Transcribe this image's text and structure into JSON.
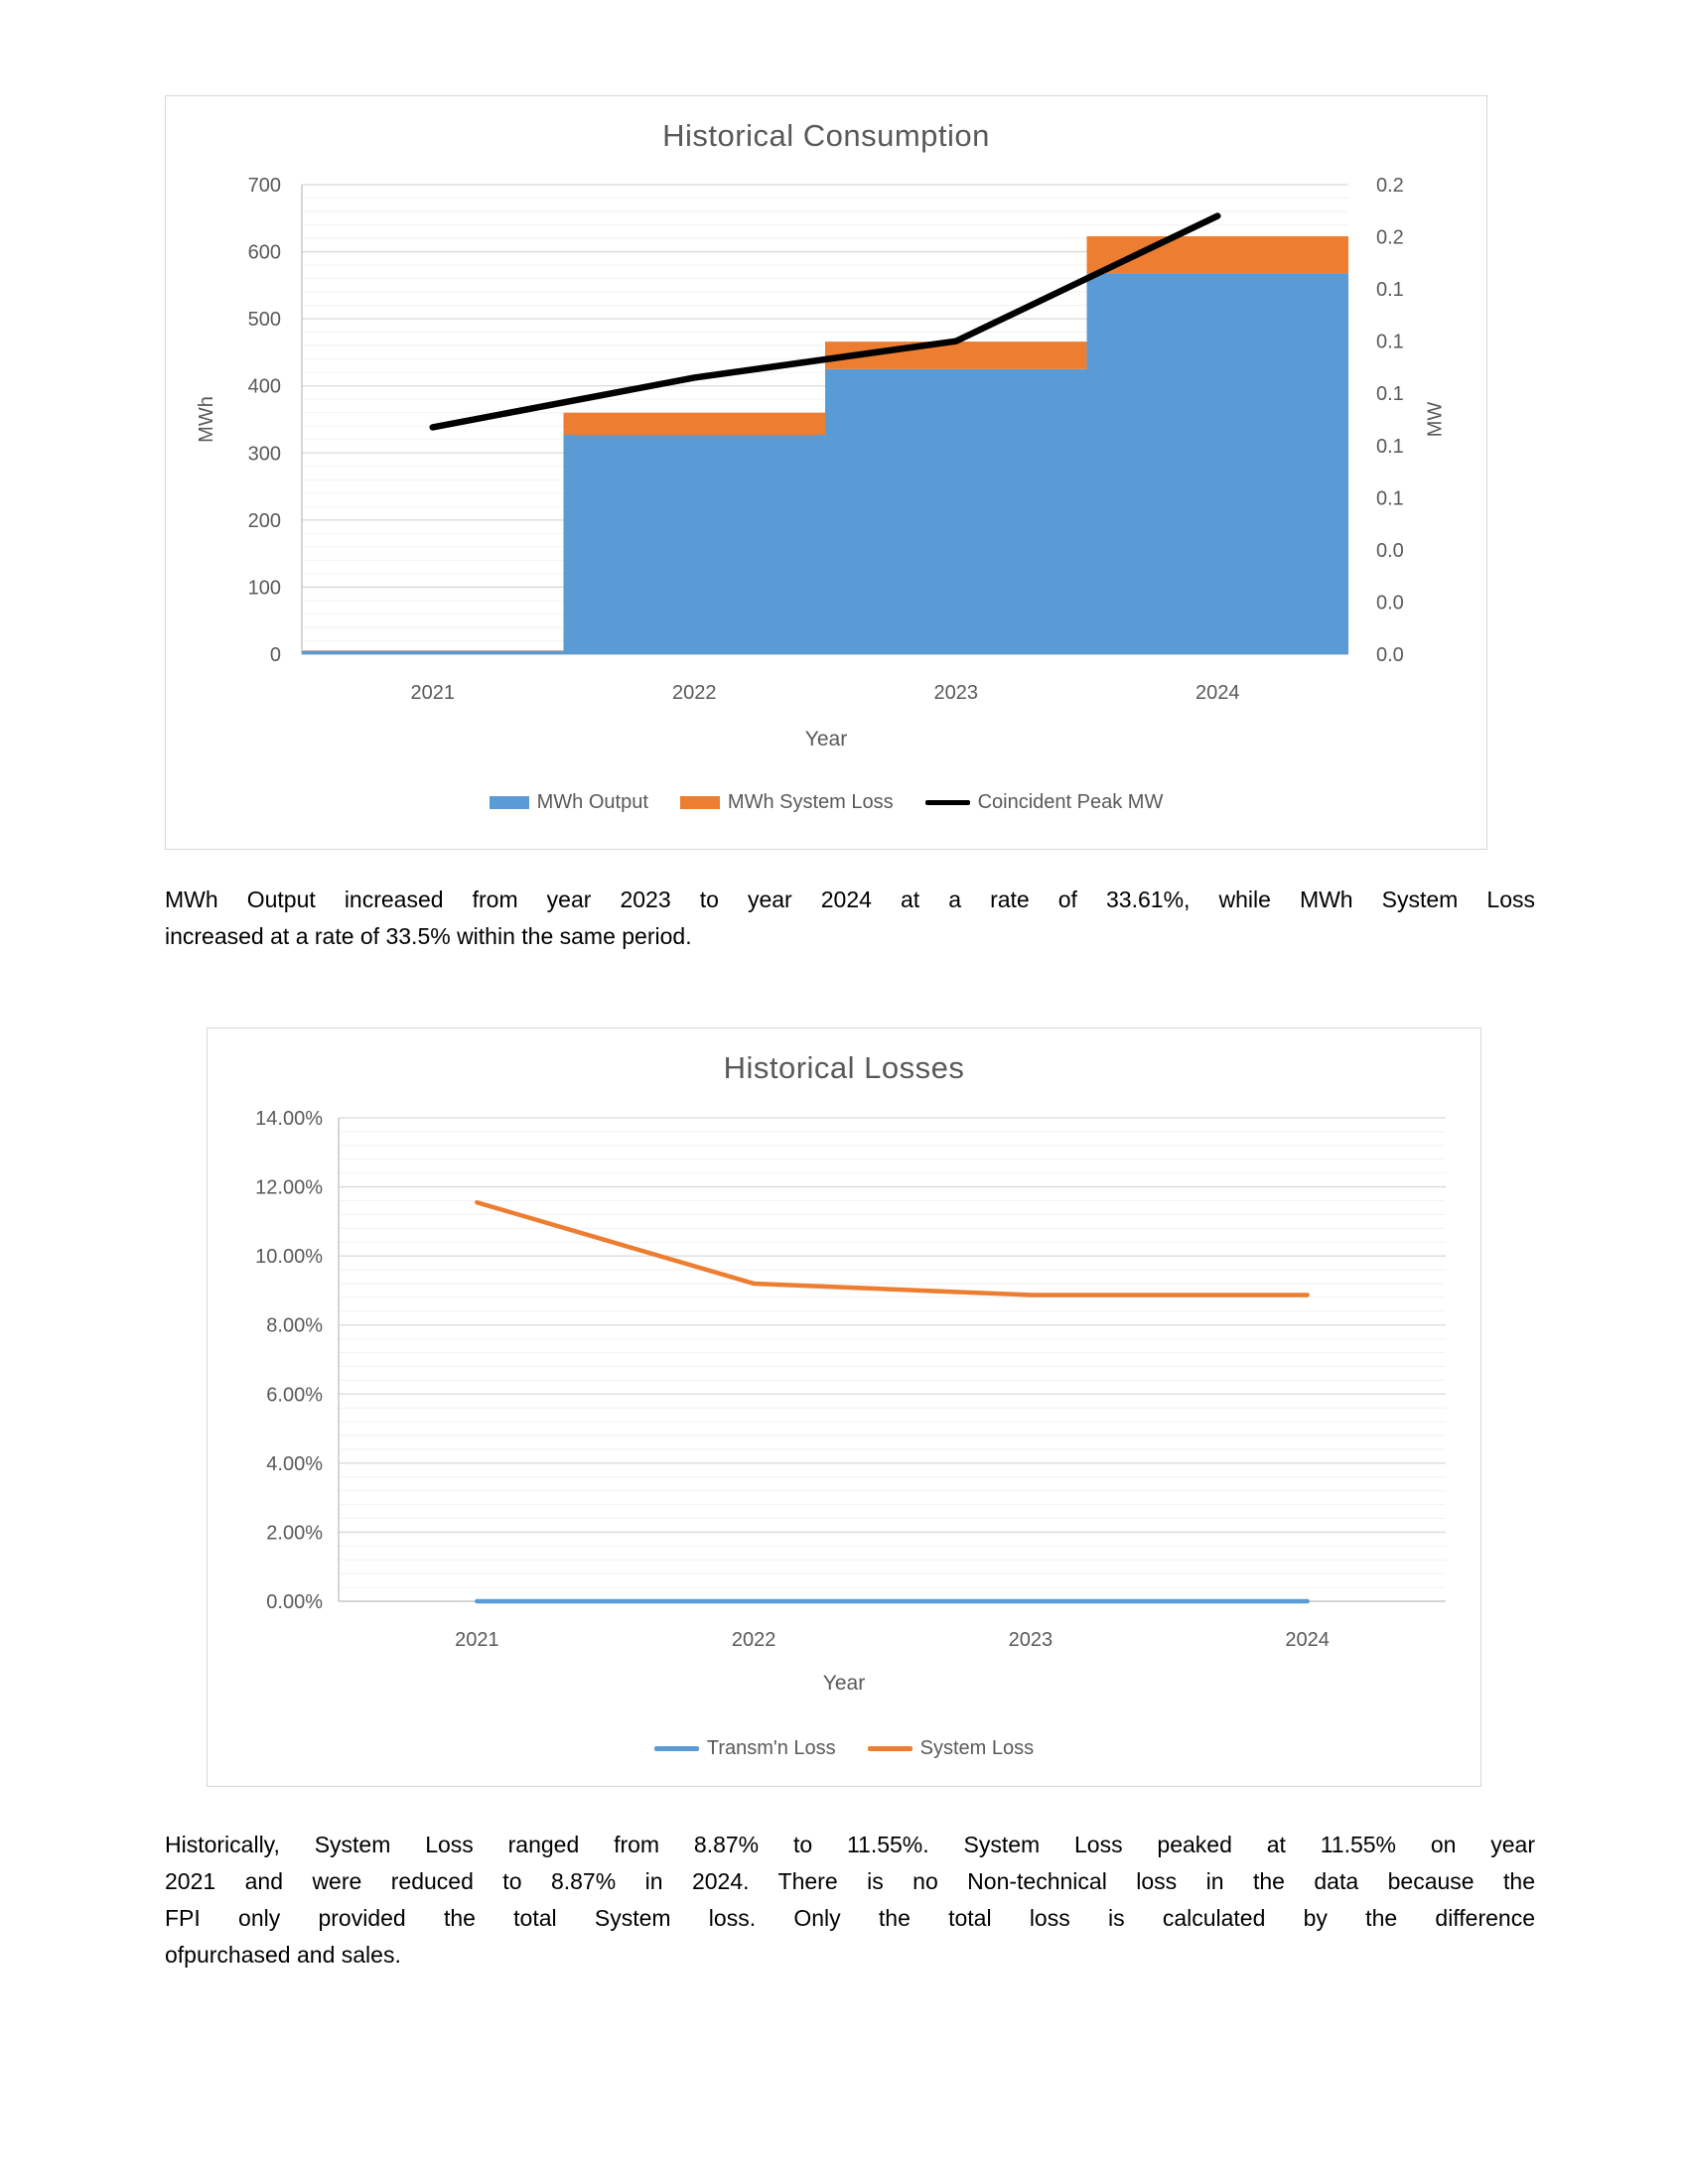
{
  "paragraphs": [
    {
      "lines": [
        "MWh Output increased from year 2023 to year 2024 at a rate of 33.61%, while MWh System Loss",
        "increased at a rate of 33.5% within the same period."
      ]
    },
    {
      "lines": [
        "Historically, System Loss ranged from 8.87% to 11.55%. System Loss peaked at 11.55% on year",
        "2021 and were reduced to 8.87% in 2024. There is no Non-technical loss in the data because the",
        "FPI only provided the total System loss. Only the total loss is calculated by the difference",
        "ofpurchased and sales."
      ]
    }
  ],
  "colors": {
    "blue": "#5B9BD5",
    "orange": "#ED7D31",
    "black": "#000000",
    "label": "#595959",
    "title": "#595959",
    "grid_major": "#d9d9d9",
    "grid_minor": "#f2f2f2",
    "axis_line": "#bfbfbf"
  },
  "chart_data": [
    {
      "type": "bar",
      "subtype": "stacked-bar-with-line",
      "title": "Historical Consumption",
      "xlabel": "Year",
      "ylabel": "MWh",
      "y2label": "MW",
      "categories": [
        "2021",
        "2022",
        "2023",
        "2024"
      ],
      "series": [
        {
          "name": "MWh Output",
          "type": "bar",
          "axis": "left",
          "color": "#5B9BD5",
          "values": [
            5,
            327,
            425,
            568
          ]
        },
        {
          "name": "MWh System Loss",
          "type": "bar",
          "axis": "left",
          "color": "#ED7D31",
          "values": [
            0.65,
            33,
            41,
            55
          ]
        },
        {
          "name": "Coincident Peak MW",
          "type": "line",
          "axis": "right",
          "color": "#000000",
          "values": [
            0.087,
            0.106,
            0.12,
            0.168
          ]
        }
      ],
      "ylim": [
        0,
        700
      ],
      "y2lim": [
        0,
        0.18
      ],
      "left_ticks": [
        "700",
        "600",
        "500",
        "400",
        "300",
        "200",
        "100",
        "0"
      ],
      "right_ticks": [
        "0.2",
        "0.2",
        "0.1",
        "0.1",
        "0.1",
        "0.1",
        "0.1",
        "0.0",
        "0.0",
        "0.0"
      ],
      "grid": {
        "major": 100,
        "minor": 20,
        "on": true
      },
      "legend_position": "bottom"
    },
    {
      "type": "line",
      "title": "Historical Losses",
      "xlabel": "Year",
      "ylabel": "",
      "categories": [
        "2021",
        "2022",
        "2023",
        "2024"
      ],
      "series": [
        {
          "name": "Transm'n Loss",
          "type": "line",
          "color": "#5B9BD5",
          "values": [
            0,
            0,
            0,
            0
          ]
        },
        {
          "name": "System Loss",
          "type": "line",
          "color": "#ED7D31",
          "values": [
            11.55,
            9.2,
            8.87,
            8.87
          ]
        }
      ],
      "ylim": [
        0,
        14
      ],
      "y_ticks": [
        "14.00%",
        "12.00%",
        "10.00%",
        "8.00%",
        "6.00%",
        "4.00%",
        "2.00%",
        "0.00%"
      ],
      "grid": {
        "major": 2,
        "minor": 0.4,
        "on": true
      },
      "legend_position": "bottom"
    }
  ]
}
